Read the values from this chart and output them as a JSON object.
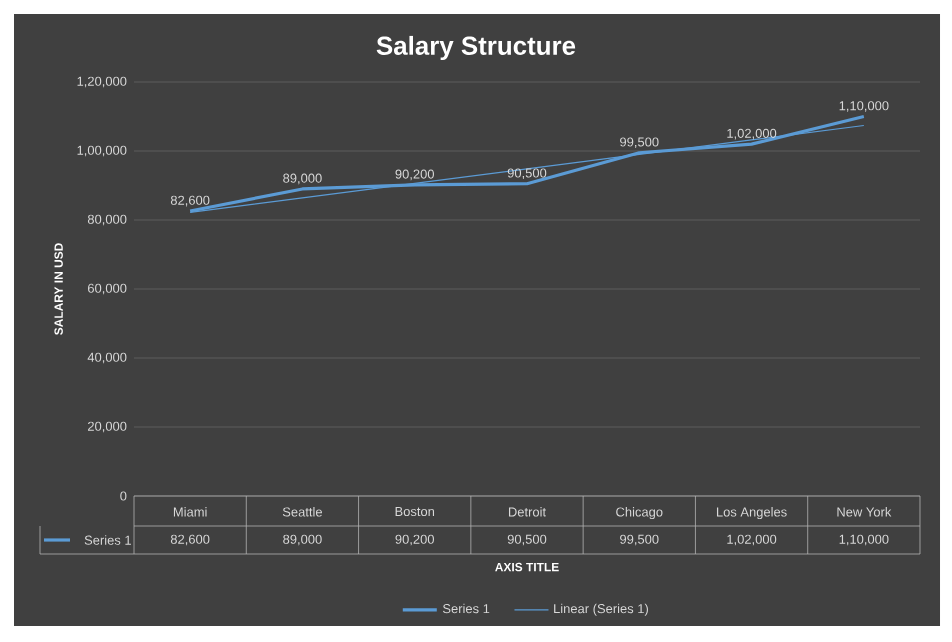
{
  "chart_data": {
    "type": "line",
    "title": "Salary Structure",
    "xlabel": "AXIS TITLE",
    "ylabel": "SALARY IN USD",
    "categories": [
      "Miami",
      "Seattle",
      "Boston",
      "Detroit",
      "Chicago",
      "Los Angeles",
      "New York"
    ],
    "series": [
      {
        "name": "Series 1",
        "color": "#5b9bd5",
        "values": [
          82600,
          89000,
          90200,
          90500,
          99500,
          102000,
          110000
        ],
        "value_labels": [
          "82,600",
          "89,000",
          "90,200",
          "90,500",
          "99,500",
          "1,02,000",
          "1,10,000"
        ]
      },
      {
        "name": "Linear (Series 1)",
        "color": "#5b9bd5",
        "values": [
          82200,
          86400,
          90600,
          94800,
          99000,
          103200,
          107400
        ]
      }
    ],
    "ylim": [
      0,
      120000
    ],
    "yticks": [
      {
        "value": 0,
        "label": "0"
      },
      {
        "value": 20000,
        "label": "20,000"
      },
      {
        "value": 40000,
        "label": "40,000"
      },
      {
        "value": 60000,
        "label": "60,000"
      },
      {
        "value": 80000,
        "label": "80,000"
      },
      {
        "value": 100000,
        "label": "1,00,000"
      },
      {
        "value": 120000,
        "label": "1,20,000"
      }
    ],
    "grid": "y",
    "legend": "bottom",
    "marker": "none",
    "line_style": "solid"
  }
}
